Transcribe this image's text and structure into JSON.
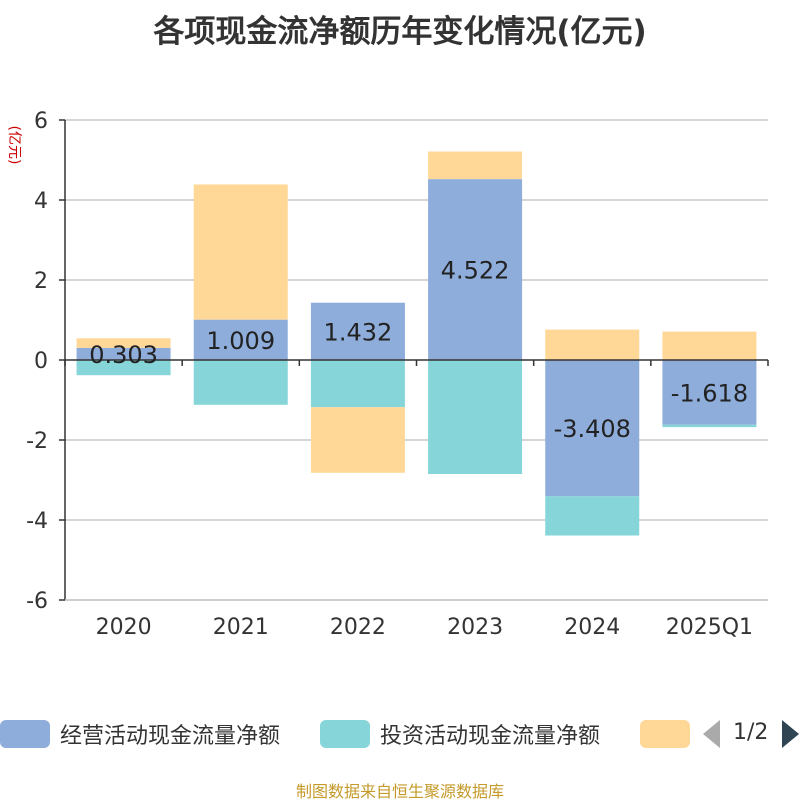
{
  "chart_data": {
    "type": "bar",
    "stacked": true,
    "title": "各项现金流净额历年变化情况(亿元)",
    "ylabel": "(亿元)",
    "xlabel": "",
    "ylim": [
      -6,
      6
    ],
    "yticks": [
      6,
      4,
      2,
      0,
      -2,
      -4,
      -6
    ],
    "grid": true,
    "categories": [
      "2020",
      "2021",
      "2022",
      "2023",
      "2024",
      "2025Q1"
    ],
    "series": [
      {
        "name": "经营活动现金流量净额",
        "color": "#8eaddb",
        "values": [
          0.303,
          1.009,
          1.432,
          4.522,
          -3.408,
          -1.618
        ],
        "show_labels": true
      },
      {
        "name": "投资活动现金流量净额",
        "color": "#86d5d9",
        "values": [
          -0.38,
          -1.12,
          -1.18,
          -2.85,
          -0.98,
          -0.06
        ],
        "show_labels": false
      },
      {
        "name": "",
        "color": "#ffd898",
        "values": [
          0.24,
          3.38,
          -1.64,
          0.69,
          0.76,
          0.71
        ],
        "show_labels": false
      }
    ],
    "legend_position": "bottom",
    "legend_page": "1/2"
  },
  "source": "制图数据来自恒生聚源数据库"
}
